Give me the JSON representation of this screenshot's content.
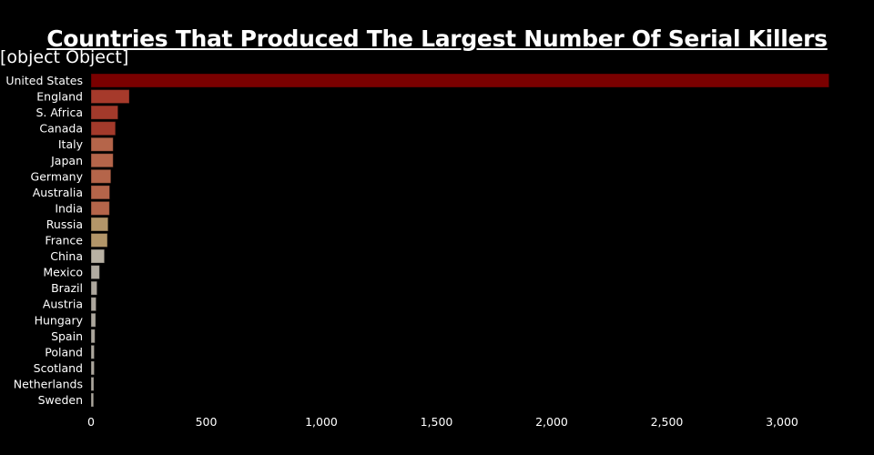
{
  "chart_data": {
    "type": "bar",
    "orientation": "horizontal",
    "title": "Countries That Produced The Largest Number Of Serial Killers",
    "subtitle": "[object Object]",
    "categories": [
      "United States",
      "England",
      "S. Africa",
      "Canada",
      "Italy",
      "Japan",
      "Germany",
      "Australia",
      "India",
      "Russia",
      "France",
      "China",
      "Mexico",
      "Brazil",
      "Austria",
      "Hungary",
      "Spain",
      "Poland",
      "Scotland",
      "Netherlands",
      "Sweden"
    ],
    "values": [
      3204,
      166,
      117,
      106,
      96,
      96,
      86,
      81,
      80,
      74,
      71,
      58,
      37,
      26,
      22,
      20,
      17,
      14,
      14,
      12,
      11
    ],
    "colors": [
      "#7a0000",
      "#a63a2b",
      "#a33a2b",
      "#a33a2b",
      "#b5654a",
      "#b5654a",
      "#b5654a",
      "#b5654a",
      "#b5654a",
      "#b39669",
      "#b39669",
      "#b8b1a3",
      "#b0aaa0",
      "#ada79d",
      "#ada79d",
      "#ada79d",
      "#ada79d",
      "#ada79d",
      "#ada79d",
      "#ada79d",
      "#ada79d"
    ],
    "xlim": [
      0,
      3300
    ],
    "xticks": [
      0,
      500,
      1000,
      1500,
      2000,
      2500,
      3000
    ],
    "xtick_labels": [
      "0",
      "500",
      "1,000",
      "1,500",
      "2,000",
      "2,500",
      "3,000"
    ],
    "grid": false,
    "background": "#000000"
  }
}
